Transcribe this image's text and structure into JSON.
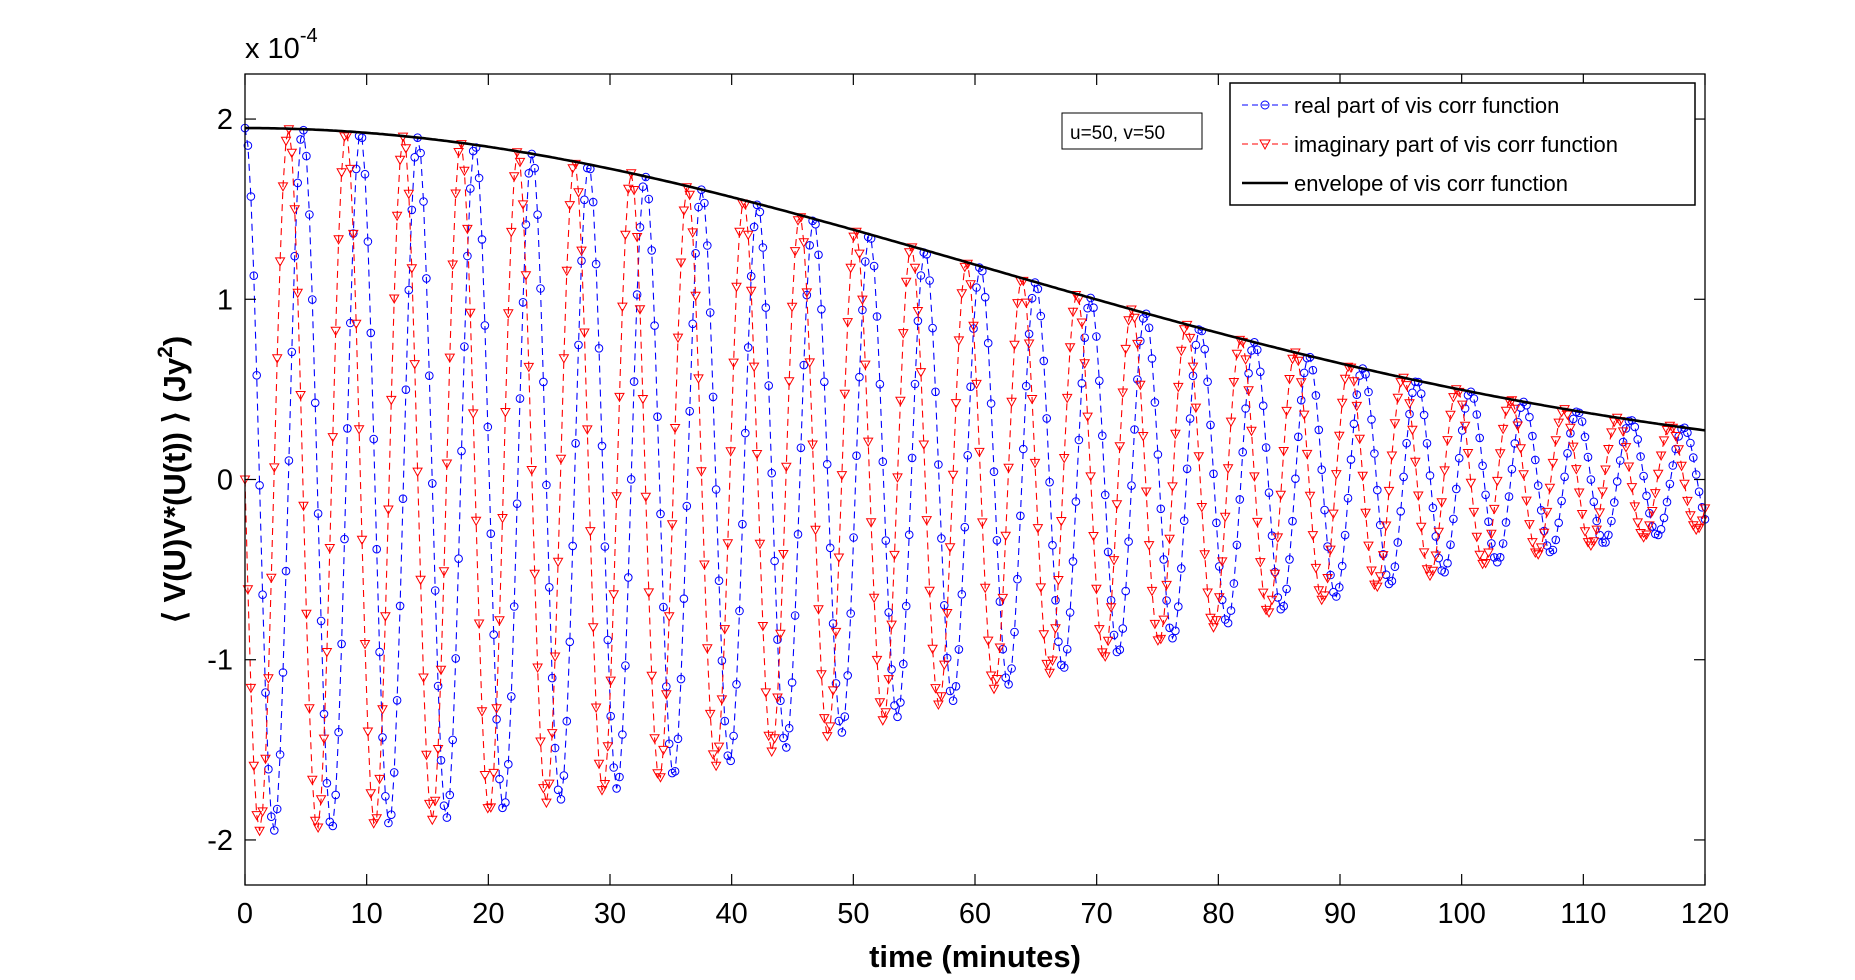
{
  "chart_data": {
    "type": "line",
    "title": "",
    "xlabel": "time (minutes)",
    "ylabel": "⟨ V(U)V*(U(t)) ⟩ (Jy²)",
    "ylabel_parts": {
      "pre": "⟨ V(U)V*(U(t)) ⟩ (Jy",
      "sup": "2",
      "post": ")"
    },
    "y_exponent": {
      "base": "x 10",
      "power": "-4"
    },
    "xlim": [
      0,
      120
    ],
    "ylim": [
      -2.25,
      2.25
    ],
    "xticks": [
      0,
      10,
      20,
      30,
      40,
      50,
      60,
      70,
      80,
      90,
      100,
      110,
      120
    ],
    "xtick_labels": [
      "0",
      "10",
      "20",
      "30",
      "40",
      "50",
      "60",
      "70",
      "80",
      "90",
      "100",
      "110",
      "120"
    ],
    "yticks": [
      -2,
      -1,
      0,
      1,
      2
    ],
    "ytick_labels": [
      "-2",
      "-1",
      "0",
      "1",
      "2"
    ],
    "grid": false,
    "legend_position": "top-right",
    "annotation": "u=50, v=50",
    "envelope_model": {
      "description": "amplitude decays as a Gaussian in time",
      "amplitude": 1.95,
      "sigma_minutes": 60.5
    },
    "oscillation_model": {
      "description": "phase frequency drifts linearly with time",
      "start_frequency_cycles_per_min": 0.21,
      "end_frequency_cycles_per_min": 0.23,
      "imaginary_phase_offset": "quarter cycle"
    },
    "samples_per_series": 500,
    "series": [
      {
        "name": "real part of vis corr function",
        "color": "#0000ff",
        "marker": "circle",
        "line_style": "dashed"
      },
      {
        "name": "imaginary part of vis corr function",
        "color": "#ff0000",
        "marker": "triangle-down",
        "line_style": "dashed"
      },
      {
        "name": "envelope of vis corr function",
        "color": "#000000",
        "marker": "none",
        "line_style": "solid"
      }
    ]
  }
}
